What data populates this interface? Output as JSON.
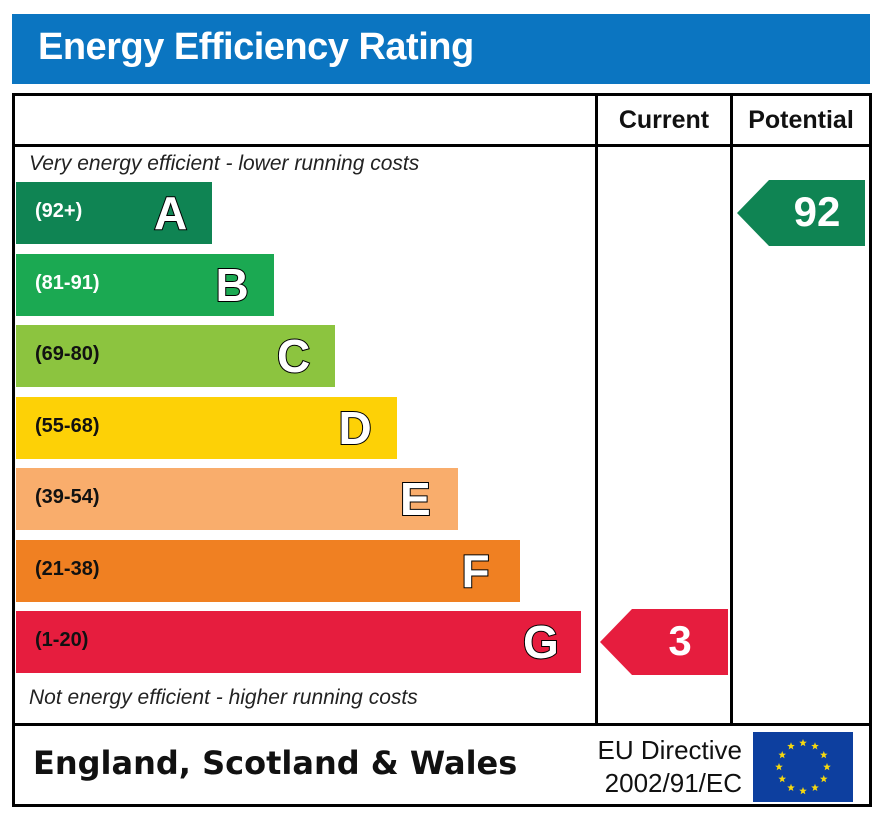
{
  "header": {
    "title": "Energy Efficiency Rating"
  },
  "columns": {
    "current_label": "Current",
    "potential_label": "Potential"
  },
  "captions": {
    "top": "Very energy efficient - lower running costs",
    "bottom": "Not energy efficient - higher running costs"
  },
  "footer": {
    "country": "England, Scotland & Wales",
    "directive_line1": "EU Directive",
    "directive_line2": "2002/91/EC",
    "flag_icon": "eu-flag-icon"
  },
  "chart_data": {
    "type": "bar",
    "title": "Energy Efficiency Rating",
    "categories": [
      "A",
      "B",
      "C",
      "D",
      "E",
      "F",
      "G"
    ],
    "bands": [
      {
        "letter": "A",
        "range": "(92+)",
        "min": 92,
        "max": 100,
        "color": "#0f8453",
        "range_color": "#ffffff"
      },
      {
        "letter": "B",
        "range": "(81-91)",
        "min": 81,
        "max": 91,
        "color": "#1ba952",
        "range_color": "#ffffff"
      },
      {
        "letter": "C",
        "range": "(69-80)",
        "min": 69,
        "max": 80,
        "color": "#8cc43f",
        "range_color": "#111111"
      },
      {
        "letter": "D",
        "range": "(55-68)",
        "min": 55,
        "max": 68,
        "color": "#fdd106",
        "range_color": "#111111"
      },
      {
        "letter": "E",
        "range": "(39-54)",
        "min": 39,
        "max": 54,
        "color": "#f9ad6c",
        "range_color": "#111111"
      },
      {
        "letter": "F",
        "range": "(21-38)",
        "min": 21,
        "max": 38,
        "color": "#f08022",
        "range_color": "#111111"
      },
      {
        "letter": "G",
        "range": "(1-20)",
        "min": 1,
        "max": 20,
        "color": "#e61d3e",
        "range_color": "#111111"
      }
    ],
    "current": {
      "value": 3,
      "band": "G",
      "color": "#e61d3e"
    },
    "potential": {
      "value": 92,
      "band": "A",
      "color": "#0f8453"
    }
  }
}
